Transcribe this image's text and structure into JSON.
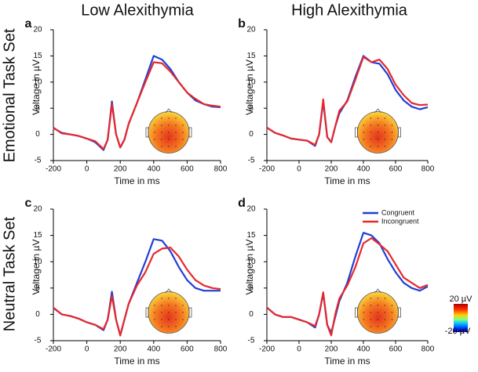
{
  "column_titles": [
    "Low Alexithymia",
    "High Alexithymia"
  ],
  "row_titles": [
    "Emotional Task Set",
    "Neutral Task Set"
  ],
  "colorbar": {
    "max_label": "20 µV",
    "min_label": "-20 µV"
  },
  "chart_data": [
    {
      "type": "line",
      "panel_label": "a",
      "xlabel": "Time in ms",
      "ylabel": "Voltage in µV",
      "x": [
        -200,
        -150,
        -100,
        -50,
        0,
        50,
        100,
        125,
        150,
        175,
        200,
        225,
        250,
        300,
        350,
        400,
        450,
        500,
        550,
        600,
        650,
        700,
        750,
        800
      ],
      "xlim": [
        -200,
        800
      ],
      "ylim": [
        -5,
        20
      ],
      "xticks": [
        -200,
        0,
        200,
        400,
        600,
        800
      ],
      "yticks": [
        -5,
        0,
        5,
        10,
        15,
        20
      ],
      "legend": false,
      "series": [
        {
          "color": "#1f3fd8",
          "values": [
            1.2,
            0.3,
            0,
            -0.3,
            -0.8,
            -1.5,
            -3,
            -1,
            6.3,
            0,
            -2.5,
            -1,
            2,
            6,
            10.5,
            15,
            14.3,
            12.5,
            10,
            8,
            6.5,
            5.8,
            5.3,
            5.2
          ]
        },
        {
          "color": "#e8282b",
          "values": [
            1.3,
            0.2,
            0,
            -0.3,
            -0.8,
            -1.3,
            -2.8,
            -1,
            5.8,
            0,
            -2.5,
            -1,
            2,
            6,
            10,
            13.8,
            13.6,
            12,
            10,
            8,
            6.8,
            5.8,
            5.5,
            5.3
          ]
        }
      ]
    },
    {
      "type": "line",
      "panel_label": "b",
      "xlabel": "Time in ms",
      "ylabel": "Voltage in µV",
      "x": [
        -200,
        -150,
        -100,
        -50,
        0,
        50,
        100,
        125,
        150,
        175,
        200,
        225,
        250,
        300,
        350,
        400,
        450,
        500,
        550,
        600,
        650,
        700,
        750,
        800
      ],
      "xlim": [
        -200,
        800
      ],
      "ylim": [
        -5,
        20
      ],
      "xticks": [
        -200,
        0,
        200,
        400,
        600,
        800
      ],
      "yticks": [
        -5,
        0,
        5,
        10,
        15,
        20
      ],
      "legend": false,
      "series": [
        {
          "color": "#1f3fd8",
          "values": [
            1.3,
            0.3,
            -0.2,
            -0.8,
            -1,
            -1.2,
            -2.2,
            0,
            6.3,
            -0.5,
            -1.5,
            1.5,
            4,
            6.5,
            11,
            15,
            13.8,
            13.5,
            11.5,
            8.5,
            6.5,
            5.3,
            4.8,
            5.2
          ]
        },
        {
          "color": "#e8282b",
          "values": [
            1.3,
            0.3,
            -0.2,
            -0.8,
            -1,
            -1.2,
            -2,
            0,
            6.7,
            -0.5,
            -1.5,
            1.5,
            4.5,
            6.3,
            10.5,
            14.8,
            13.8,
            14.3,
            12.5,
            9.5,
            7.5,
            6,
            5.6,
            5.7
          ]
        }
      ]
    },
    {
      "type": "line",
      "panel_label": "c",
      "xlabel": "Time in ms",
      "ylabel": "Voltage in µV",
      "x": [
        -200,
        -150,
        -100,
        -50,
        0,
        50,
        100,
        125,
        150,
        175,
        200,
        225,
        250,
        300,
        350,
        400,
        450,
        500,
        550,
        600,
        650,
        700,
        750,
        800
      ],
      "xlim": [
        -200,
        800
      ],
      "ylim": [
        -5,
        20
      ],
      "xticks": [
        -200,
        0,
        200,
        400,
        600,
        800
      ],
      "yticks": [
        -5,
        0,
        5,
        10,
        15,
        20
      ],
      "legend": false,
      "series": [
        {
          "color": "#1f3fd8",
          "values": [
            1.2,
            0,
            -0.3,
            -0.8,
            -1.5,
            -2,
            -3,
            -1,
            4.3,
            -1,
            -4,
            -1,
            2,
            6,
            10,
            14.3,
            14,
            12,
            9,
            6.5,
            5,
            4.5,
            4.5,
            4.5
          ]
        },
        {
          "color": "#e8282b",
          "values": [
            1.3,
            0,
            -0.3,
            -0.8,
            -1.5,
            -2,
            -2.8,
            -1,
            3.5,
            -1,
            -4,
            -1,
            2,
            5.5,
            8,
            11.5,
            12.5,
            12.7,
            11,
            8.5,
            6.5,
            5.5,
            5,
            4.8
          ]
        }
      ]
    },
    {
      "type": "line",
      "panel_label": "d",
      "xlabel": "Time in ms",
      "ylabel": "Voltage in µV",
      "x": [
        -200,
        -150,
        -100,
        -50,
        0,
        50,
        100,
        125,
        150,
        175,
        200,
        225,
        250,
        300,
        350,
        400,
        450,
        500,
        550,
        600,
        650,
        700,
        750,
        800
      ],
      "xlim": [
        -200,
        800
      ],
      "ylim": [
        -5,
        20
      ],
      "xticks": [
        -200,
        0,
        200,
        400,
        600,
        800
      ],
      "yticks": [
        -5,
        0,
        5,
        10,
        15,
        20
      ],
      "legend": true,
      "series": [
        {
          "name": "Congruent",
          "color": "#1f3fd8",
          "values": [
            1.3,
            0,
            -0.5,
            -0.5,
            -1,
            -1.5,
            -2.5,
            0,
            4,
            -2,
            -3.5,
            -0.5,
            2.5,
            6,
            11,
            15.5,
            15,
            13.5,
            10.5,
            8,
            6,
            5,
            4.5,
            5.3
          ]
        },
        {
          "name": "Incongruent",
          "color": "#e8282b",
          "values": [
            1.3,
            0,
            -0.5,
            -0.5,
            -1,
            -1.5,
            -2.2,
            0,
            4.2,
            -2,
            -4,
            0,
            3,
            5.5,
            9,
            13.5,
            14.5,
            13.3,
            12,
            9.5,
            7,
            6,
            5,
            5.6
          ]
        }
      ]
    }
  ]
}
